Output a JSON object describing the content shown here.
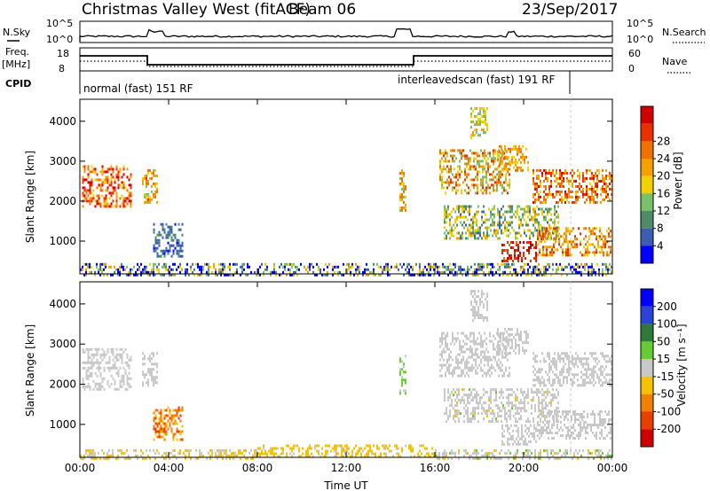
{
  "header": {
    "station": "Christmas Valley West (fitACF)",
    "beam": "Beam 06",
    "date": "23/Sep/2017"
  },
  "summary_panel": {
    "nsky_label_1": "N.Sky",
    "nsearch_label": "N.Search",
    "ytick_left_top": "10^5",
    "ytick_left_bottom": "10^0",
    "ytick_right_top": "10^5",
    "ytick_right_bottom": "10^0",
    "freq_label_1": "Freq.",
    "freq_label_2": "[MHz]",
    "freq_ticks": [
      "18",
      "8"
    ],
    "nave_label": "Nave",
    "nave_ticks": [
      "60",
      "0"
    ],
    "cpid_label": "CPID",
    "mode_1": "normal (fast) 151 RF",
    "mode_2": "interleavedscan (fast) 191 RF"
  },
  "colors": {
    "power": [
      "#0000ff",
      "#3b5fb0",
      "#4f8b6b",
      "#7bbf6b",
      "#f0d000",
      "#f5a000",
      "#f07000",
      "#e83000",
      "#d00000"
    ],
    "velocity": [
      "#0000ff",
      "#2a44d8",
      "#2f7a3a",
      "#66cc33",
      "#c8c8c8",
      "#f5c100",
      "#f08000",
      "#e84000",
      "#d00000"
    ]
  },
  "chart_data": [
    {
      "type": "heatmap",
      "name": "power",
      "xlabel": "",
      "ylabel": "Slant Range [km]",
      "xticks": [
        "00:00",
        "04:00",
        "08:00",
        "12:00",
        "16:00",
        "20:00",
        "00:00"
      ],
      "yticks": [
        "1000",
        "2000",
        "3000",
        "4000"
      ],
      "x_range_hours": [
        0,
        24
      ],
      "y_range_km": [
        180,
        4550
      ],
      "colorbar_label": "Power [dB]",
      "colorbar_ticks": [
        "4",
        "8",
        "12",
        "16",
        "20",
        "24",
        "28"
      ],
      "colorbar_range": [
        0,
        30
      ],
      "regions": [
        {
          "t0": 0.1,
          "t1": 2.3,
          "r0": 1900,
          "r1": 2900,
          "level": 22,
          "spread": 8
        },
        {
          "t0": 2.8,
          "t1": 3.5,
          "r0": 1950,
          "r1": 2800,
          "level": 18,
          "spread": 6
        },
        {
          "t0": 3.3,
          "t1": 4.6,
          "r0": 600,
          "r1": 1450,
          "level": 6,
          "spread": 3
        },
        {
          "t0": 14.4,
          "t1": 14.7,
          "r0": 1800,
          "r1": 2800,
          "level": 18,
          "spread": 6
        },
        {
          "t0": 16.2,
          "t1": 19.4,
          "r0": 2200,
          "r1": 3300,
          "level": 18,
          "spread": 8
        },
        {
          "t0": 16.4,
          "t1": 21.6,
          "r0": 1050,
          "r1": 1900,
          "level": 12,
          "spread": 6
        },
        {
          "t0": 19.0,
          "t1": 20.6,
          "r0": 520,
          "r1": 1000,
          "level": 27,
          "spread": 4
        },
        {
          "t0": 20.6,
          "t1": 23.9,
          "r0": 650,
          "r1": 1350,
          "level": 20,
          "spread": 6
        },
        {
          "t0": 20.4,
          "t1": 24.0,
          "r0": 2000,
          "r1": 2800,
          "level": 22,
          "spread": 6
        },
        {
          "t0": 18.8,
          "t1": 20.2,
          "r0": 2800,
          "r1": 3400,
          "level": 19,
          "spread": 4
        },
        {
          "t0": 17.6,
          "t1": 18.4,
          "r0": 3600,
          "r1": 4350,
          "level": 14,
          "spread": 4
        },
        {
          "t0": 0.0,
          "t1": 24.0,
          "r0": 180,
          "r1": 450,
          "level": 8,
          "spread": 12
        }
      ]
    },
    {
      "type": "heatmap",
      "name": "velocity",
      "xlabel": "Time UT",
      "ylabel": "Slant Range [km]",
      "xticks": [
        "00:00",
        "04:00",
        "08:00",
        "12:00",
        "16:00",
        "20:00",
        "00:00"
      ],
      "yticks": [
        "1000",
        "2000",
        "3000",
        "4000"
      ],
      "x_range_hours": [
        0,
        24
      ],
      "y_range_km": [
        180,
        4550
      ],
      "colorbar_label": "Velocity [m s⁻¹]",
      "colorbar_ticks": [
        "200",
        "100",
        "50",
        "15",
        "-15",
        "-50",
        "-100",
        "-200"
      ],
      "colorbar_range": [
        -250,
        250
      ],
      "regions": [
        {
          "t0": 0.1,
          "t1": 2.3,
          "r0": 1900,
          "r1": 2900,
          "level": 0,
          "spread": 20
        },
        {
          "t0": 2.8,
          "t1": 3.5,
          "r0": 1950,
          "r1": 2800,
          "level": 0,
          "spread": 20
        },
        {
          "t0": 3.3,
          "t1": 4.6,
          "r0": 600,
          "r1": 1450,
          "level": -110,
          "spread": 50
        },
        {
          "t0": 14.4,
          "t1": 14.7,
          "r0": 1800,
          "r1": 2800,
          "level": 40,
          "spread": 40
        },
        {
          "t0": 16.2,
          "t1": 19.4,
          "r0": 2200,
          "r1": 3300,
          "level": 0,
          "spread": 20
        },
        {
          "t0": 16.4,
          "t1": 21.6,
          "r0": 1050,
          "r1": 1900,
          "level": 0,
          "spread": 30
        },
        {
          "t0": 19.0,
          "t1": 20.6,
          "r0": 520,
          "r1": 1000,
          "level": 0,
          "spread": 20
        },
        {
          "t0": 20.6,
          "t1": 23.9,
          "r0": 650,
          "r1": 1350,
          "level": 0,
          "spread": 20
        },
        {
          "t0": 20.4,
          "t1": 24.0,
          "r0": 2000,
          "r1": 2800,
          "level": 0,
          "spread": 20
        },
        {
          "t0": 18.8,
          "t1": 20.2,
          "r0": 2800,
          "r1": 3400,
          "level": 0,
          "spread": 20
        },
        {
          "t0": 17.6,
          "t1": 18.4,
          "r0": 3600,
          "r1": 4350,
          "level": 0,
          "spread": 20
        },
        {
          "t0": 8.0,
          "t1": 16.0,
          "r0": 180,
          "r1": 500,
          "level": -45,
          "spread": 25
        },
        {
          "t0": 0.0,
          "t1": 8.0,
          "r0": 180,
          "r1": 380,
          "level": -30,
          "spread": 40
        },
        {
          "t0": 16.0,
          "t1": 24.0,
          "r0": 180,
          "r1": 380,
          "level": 0,
          "spread": 40
        }
      ]
    }
  ]
}
